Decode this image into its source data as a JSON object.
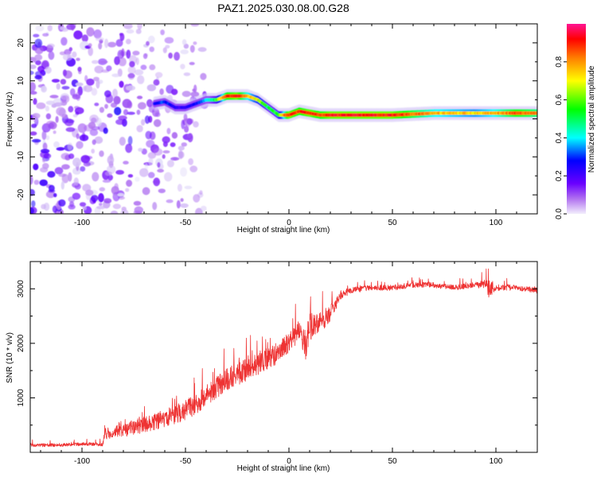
{
  "figure": {
    "title": "PAZ1.2025.030.08.00.G28",
    "trace_color": "#ee3333",
    "colormap": [
      "#e6e6fa",
      "#b070f0",
      "#6a00ff",
      "#0000ff",
      "#00ffff",
      "#00ff00",
      "#ffff00",
      "#ff7f00",
      "#ff0000",
      "#ff1493"
    ]
  },
  "chart_data": [
    {
      "type": "heatmap",
      "xlabel": "Height of straight line (km)",
      "ylabel": "Frequency (Hz)",
      "xlim": [
        -125,
        120
      ],
      "ylim": [
        -25,
        25
      ],
      "x_ticks": [
        "-100",
        "-50",
        "0",
        "50",
        "100"
      ],
      "x_tick_values": [
        -100,
        -50,
        0,
        50,
        100
      ],
      "y_ticks": [
        "-20",
        "-10",
        "0",
        "10",
        "20"
      ],
      "y_tick_values": [
        -20,
        -10,
        0,
        10,
        20
      ],
      "colorbar": {
        "label": "Normalized spectral amplitude",
        "range": [
          0,
          1
        ],
        "ticks": [
          "0.0",
          "0.2",
          "0.4",
          "0.6",
          "0.8"
        ],
        "tick_values": [
          0,
          0.2,
          0.4,
          0.6,
          0.8
        ]
      },
      "ridge": {
        "x": [
          -65,
          -60,
          -55,
          -50,
          -45,
          -40,
          -35,
          -30,
          -25,
          -20,
          -15,
          -10,
          -5,
          0,
          5,
          10,
          15,
          20,
          30,
          50,
          70,
          90,
          100,
          110,
          120
        ],
        "freq": [
          4,
          4.5,
          3,
          3,
          4,
          5,
          5,
          6,
          6,
          6,
          5,
          3,
          1,
          1,
          2,
          1.5,
          1,
          1,
          1,
          1,
          1.5,
          1.5,
          1.5,
          1.5,
          1.5
        ],
        "amplitude": [
          0.35,
          0.4,
          0.3,
          0.3,
          0.35,
          0.45,
          0.6,
          0.9,
          0.95,
          0.8,
          0.7,
          0.55,
          0.6,
          0.95,
          0.9,
          0.95,
          0.9,
          0.95,
          0.95,
          0.95,
          0.8,
          0.75,
          0.8,
          0.9,
          0.85
        ]
      },
      "scatter_region": {
        "x_range": [
          -125,
          -40
        ],
        "freq_range": [
          -25,
          25
        ],
        "amplitude": 0.2
      }
    },
    {
      "type": "line",
      "xlabel": "Height of straight line (km)",
      "ylabel": "SNR (10 * v/v)",
      "xlim": [
        -125,
        120
      ],
      "ylim": [
        0,
        3500
      ],
      "x_ticks": [
        "-100",
        "-50",
        "0",
        "50",
        "100"
      ],
      "x_tick_values": [
        -100,
        -50,
        0,
        50,
        100
      ],
      "y_ticks": [
        "1000",
        "2000",
        "3000"
      ],
      "y_tick_values": [
        1000,
        2000,
        3000
      ],
      "series": [
        {
          "x": [
            -125,
            -115,
            -105,
            -100,
            -95,
            -90,
            -89,
            -85,
            -80,
            -75,
            -70,
            -65,
            -60,
            -55,
            -50,
            -45,
            -40,
            -35,
            -30,
            -25,
            -20,
            -15,
            -10,
            -5,
            0,
            5,
            8,
            10,
            15,
            20,
            25,
            30,
            40,
            50,
            60,
            70,
            80,
            90,
            95,
            97,
            100,
            110,
            120
          ],
          "y": [
            120,
            120,
            130,
            140,
            140,
            130,
            300,
            320,
            360,
            400,
            450,
            500,
            560,
            620,
            700,
            800,
            950,
            1100,
            1250,
            1350,
            1450,
            1550,
            1650,
            1750,
            1950,
            2150,
            1800,
            2200,
            2300,
            2500,
            2850,
            2950,
            3000,
            3000,
            3050,
            3050,
            3000,
            3050,
            3050,
            2900,
            3000,
            3000,
            2950
          ],
          "noise": [
            60,
            60,
            60,
            60,
            60,
            60,
            200,
            220,
            250,
            280,
            300,
            320,
            330,
            350,
            370,
            380,
            400,
            420,
            420,
            450,
            420,
            420,
            420,
            400,
            350,
            400,
            700,
            500,
            400,
            300,
            150,
            110,
            100,
            100,
            100,
            100,
            100,
            100,
            180,
            350,
            120,
            100,
            100
          ]
        }
      ]
    }
  ]
}
